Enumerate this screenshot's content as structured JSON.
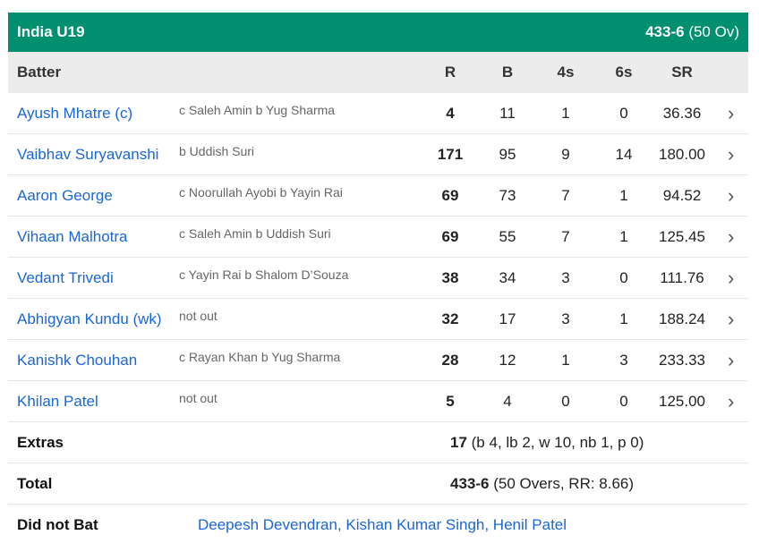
{
  "team": {
    "name": "India U19",
    "score": "433-6",
    "overs": "(50 Ov)"
  },
  "colors": {
    "header_bg": "#009070",
    "link": "#1a66d6",
    "subheader_bg": "#ececec"
  },
  "columns": {
    "batter": "Batter",
    "r": "R",
    "b": "B",
    "fours": "4s",
    "sixes": "6s",
    "sr": "SR"
  },
  "batters": [
    {
      "name": "Ayush Mhatre (c)",
      "dismissal": "c Saleh Amin b Yug Sharma",
      "r": "4",
      "b": "11",
      "fours": "1",
      "sixes": "0",
      "sr": "36.36"
    },
    {
      "name": "Vaibhav Suryavanshi",
      "dismissal": "b Uddish Suri",
      "r": "171",
      "b": "95",
      "fours": "9",
      "sixes": "14",
      "sr": "180.00"
    },
    {
      "name": "Aaron George",
      "dismissal": "c Noorullah Ayobi b Yayin Rai",
      "r": "69",
      "b": "73",
      "fours": "7",
      "sixes": "1",
      "sr": "94.52"
    },
    {
      "name": "Vihaan Malhotra",
      "dismissal": "c Saleh Amin b Uddish Suri",
      "r": "69",
      "b": "55",
      "fours": "7",
      "sixes": "1",
      "sr": "125.45"
    },
    {
      "name": "Vedant Trivedi",
      "dismissal": "c Yayin Rai b Shalom D’Souza",
      "r": "38",
      "b": "34",
      "fours": "3",
      "sixes": "0",
      "sr": "111.76"
    },
    {
      "name": "Abhigyan Kundu (wk)",
      "dismissal": "not out",
      "r": "32",
      "b": "17",
      "fours": "3",
      "sixes": "1",
      "sr": "188.24"
    },
    {
      "name": "Kanishk Chouhan",
      "dismissal": "c Rayan Khan b Yug Sharma",
      "r": "28",
      "b": "12",
      "fours": "1",
      "sixes": "3",
      "sr": "233.33"
    },
    {
      "name": "Khilan Patel",
      "dismissal": "not out",
      "r": "5",
      "b": "4",
      "fours": "0",
      "sixes": "0",
      "sr": "125.00"
    }
  ],
  "extras": {
    "label": "Extras",
    "value": "17",
    "detail": " (b 4, lb 2, w 10, nb 1, p 0)"
  },
  "total": {
    "label": "Total",
    "value": "433-6",
    "detail": " (50 Overs, RR: 8.66)"
  },
  "did_not_bat": {
    "label": "Did not Bat",
    "players": "Deepesh Devendran, Kishan Kumar Singh, Henil Patel"
  }
}
